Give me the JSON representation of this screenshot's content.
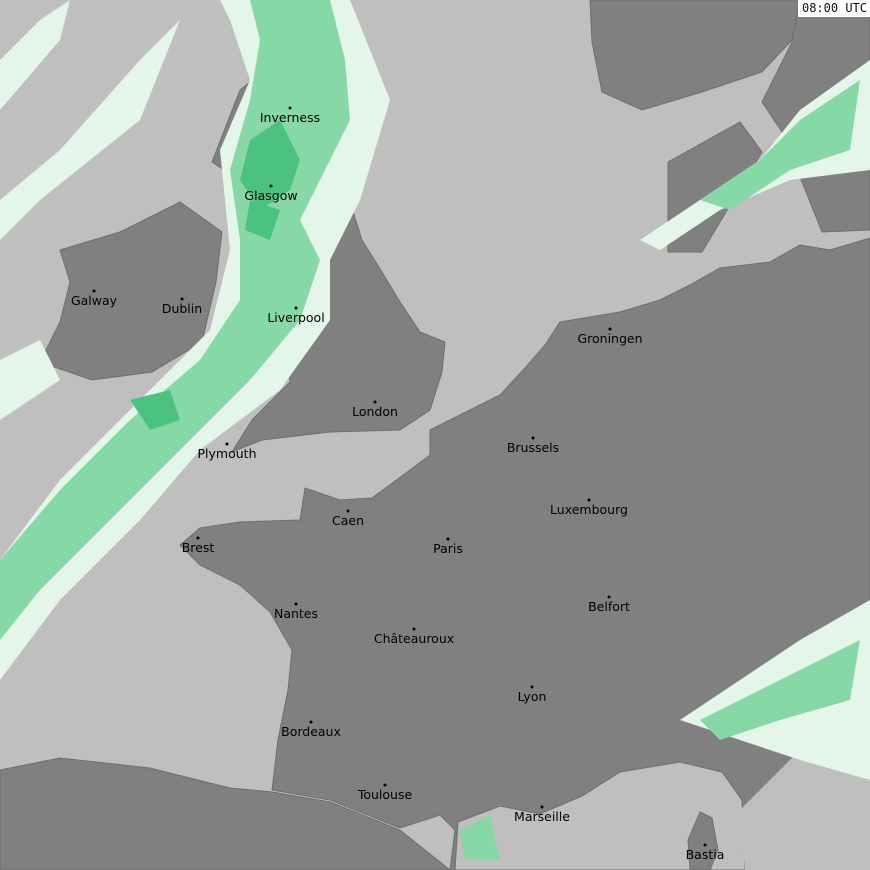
{
  "timestamp": "08:00 UTC",
  "colors": {
    "sea": "#bfbfbf",
    "land": "#808080",
    "rain_light": "#e4f6e9",
    "rain_moderate": "#86d9a6",
    "rain_heavy": "#4cc27f"
  },
  "cities": [
    {
      "name": "Inverness"
    },
    {
      "name": "Glasgow"
    },
    {
      "name": "Galway"
    },
    {
      "name": "Dublin"
    },
    {
      "name": "Liverpool"
    },
    {
      "name": "Groningen"
    },
    {
      "name": "London"
    },
    {
      "name": "Brussels"
    },
    {
      "name": "Plymouth"
    },
    {
      "name": "Luxembourg"
    },
    {
      "name": "Caen"
    },
    {
      "name": "Brest"
    },
    {
      "name": "Paris"
    },
    {
      "name": "Belfort"
    },
    {
      "name": "Nantes"
    },
    {
      "name": "Châteauroux"
    },
    {
      "name": "Lyon"
    },
    {
      "name": "Bordeaux"
    },
    {
      "name": "Toulouse"
    },
    {
      "name": "Marseille"
    },
    {
      "name": "Bastia"
    }
  ]
}
